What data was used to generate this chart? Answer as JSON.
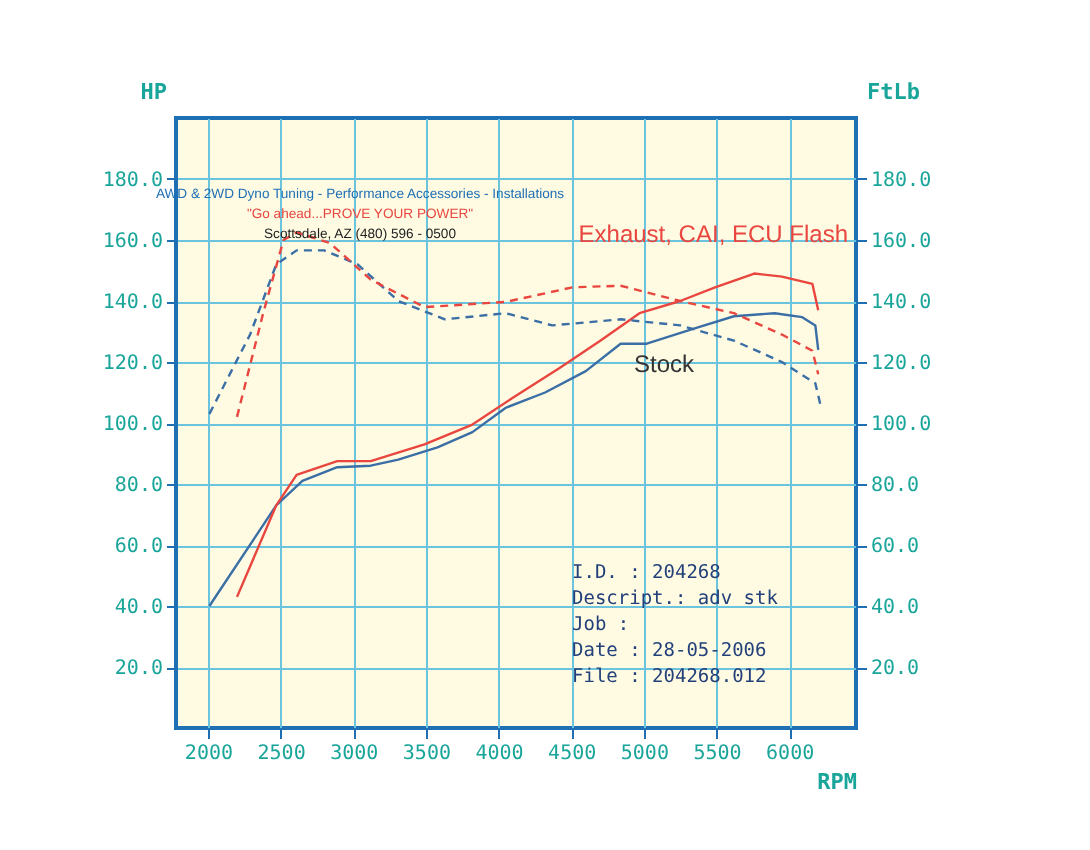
{
  "chart_data": {
    "type": "line",
    "subtitle": [
      "AWD & 2WD Dyno Tuning - Performance Accessories - Installations",
      "\"Go ahead...PROVE YOUR POWER\"",
      "Scottsdale, AZ (480) 596 - 0500"
    ],
    "xlabel": "RPM",
    "ylabel": "HP",
    "y2label": "FtLb",
    "xlim": [
      1780,
      6460
    ],
    "xticks": [
      2000,
      2500,
      3000,
      3500,
      4000,
      4500,
      5000,
      5500,
      6000
    ],
    "ylim": [
      0,
      200
    ],
    "yticks": [
      {
        "value": 20,
        "label": "20.0"
      },
      {
        "value": 40,
        "label": "40.0"
      },
      {
        "value": 60,
        "label": "60.0"
      },
      {
        "value": 80,
        "label": "80.0"
      },
      {
        "value": 100,
        "label": "100.0"
      },
      {
        "value": 120,
        "label": "120.0"
      },
      {
        "value": 140,
        "label": "140.0"
      },
      {
        "value": 160,
        "label": "160.0"
      },
      {
        "value": 180,
        "label": "180.0"
      }
    ],
    "y2lim": [
      0,
      200
    ],
    "y2ticks": [
      {
        "value": 20,
        "label": "20.0"
      },
      {
        "value": 40,
        "label": "40.0"
      },
      {
        "value": 60,
        "label": "60.0"
      },
      {
        "value": 80,
        "label": "80.0"
      },
      {
        "value": 100,
        "label": "100.0"
      },
      {
        "value": 120,
        "label": "120.0"
      },
      {
        "value": 140,
        "label": "140.0"
      },
      {
        "value": 160,
        "label": "160.0"
      },
      {
        "value": 180,
        "label": "180.0"
      }
    ],
    "grid": true,
    "series": [
      {
        "color": "#3a6ea5",
        "line_style": "solid",
        "x": [
          2010,
          2470,
          2650,
          2890,
          3120,
          3310,
          3580,
          3820,
          4050,
          4320,
          4600,
          4840,
          5020,
          5350,
          5620,
          5900,
          6090,
          6180,
          6200
        ],
        "values": [
          40,
          73,
          81,
          85.5,
          86,
          88,
          92,
          97,
          105,
          110,
          117,
          126,
          126,
          131,
          135,
          136,
          134.7,
          132,
          124
        ]
      },
      {
        "color": "#e8463f",
        "line_style": "solid",
        "x": [
          2200,
          2470,
          2610,
          2890,
          3120,
          3490,
          3820,
          4090,
          4420,
          4700,
          4970,
          5250,
          5490,
          5760,
          5950,
          6160,
          6200
        ],
        "values": [
          43,
          73,
          83,
          87.5,
          87.5,
          93,
          99.5,
          108,
          118,
          127,
          136,
          140,
          144.5,
          149,
          148,
          145.6,
          137
        ]
      },
      {
        "color": "#3a6ea5",
        "line_style": "dashed",
        "axis": "y2",
        "x": [
          2010,
          2290,
          2470,
          2610,
          2800,
          3030,
          3310,
          3630,
          4050,
          4370,
          4840,
          5250,
          5620,
          5950,
          6180,
          6220
        ],
        "values": [
          103,
          129,
          152,
          156.6,
          156.6,
          152,
          140,
          134,
          136,
          132,
          134,
          132,
          127,
          120,
          113,
          105
        ]
      },
      {
        "color": "#e8463f",
        "line_style": "dashed",
        "axis": "y2",
        "x": [
          2200,
          2380,
          2520,
          2610,
          2840,
          3120,
          3490,
          4050,
          4510,
          4840,
          5250,
          5620,
          5950,
          6160,
          6200
        ],
        "values": [
          102,
          136,
          160,
          162.5,
          159,
          147,
          138,
          139.7,
          144.5,
          145,
          140,
          136,
          129,
          123.7,
          116
        ]
      }
    ],
    "annotations": [
      "Exhaust, CAI, ECU Flash",
      "Stock",
      "I.D.      : 204268",
      "Descript.: adv stk",
      "Job       :",
      "Date      : 28-05-2006",
      "File      : 204268.012"
    ]
  }
}
